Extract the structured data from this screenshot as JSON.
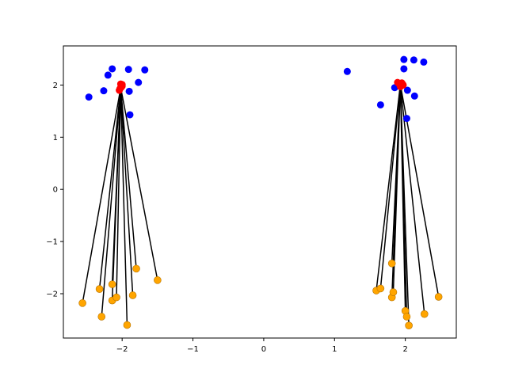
{
  "chart_data": {
    "type": "scatter",
    "title": "",
    "xlabel": "",
    "ylabel": "",
    "xlim": [
      -2.83,
      2.72
    ],
    "ylim": [
      -2.85,
      2.75
    ],
    "grid": false,
    "x_ticks": [
      -2,
      -1,
      0,
      1,
      2
    ],
    "x_tick_labels": [
      "−2",
      "−1",
      "0",
      "1",
      "2"
    ],
    "y_ticks": [
      -2,
      -1,
      0,
      1,
      2
    ],
    "y_tick_labels": [
      "−2",
      "−1",
      "0",
      "1",
      "2"
    ],
    "colors": {
      "blue": "#0000ff",
      "red": "#ff0000",
      "orange": "#ffa500",
      "line": "#000000",
      "orange_edge": "#b87400"
    },
    "series": [
      {
        "color": "blue",
        "points": [
          [
            -2.47,
            1.77
          ],
          [
            -2.26,
            1.89
          ],
          [
            -2.2,
            2.19
          ],
          [
            -2.14,
            2.31
          ],
          [
            -1.91,
            2.3
          ],
          [
            -1.9,
            1.88
          ],
          [
            -1.89,
            1.43
          ],
          [
            -1.77,
            2.05
          ],
          [
            -1.68,
            2.29
          ],
          [
            1.18,
            2.26
          ],
          [
            1.65,
            1.62
          ],
          [
            1.85,
            1.95
          ],
          [
            1.98,
            2.49
          ],
          [
            1.98,
            2.31
          ],
          [
            2.03,
            1.9
          ],
          [
            2.02,
            1.36
          ],
          [
            2.13,
            1.79
          ],
          [
            2.12,
            2.48
          ],
          [
            2.26,
            2.44
          ]
        ]
      },
      {
        "color": "red",
        "points": [
          [
            -2.04,
            1.9
          ],
          [
            -2.02,
            1.95
          ],
          [
            -2.01,
            1.99
          ],
          [
            -2.02,
            2.02
          ],
          [
            -2.0,
            2.01
          ],
          [
            -2.03,
            1.93
          ],
          [
            -2.01,
            1.96
          ],
          [
            -2.0,
            1.98
          ],
          [
            1.89,
            2.05
          ],
          [
            1.92,
            2.01
          ],
          [
            1.96,
            2.02
          ],
          [
            1.94,
            1.98
          ],
          [
            1.91,
            2.03
          ],
          [
            1.97,
            2.0
          ],
          [
            1.93,
            1.97
          ],
          [
            1.95,
            2.04
          ]
        ]
      },
      {
        "color": "orange",
        "points": [
          [
            -2.56,
            -2.18
          ],
          [
            -2.32,
            -1.91
          ],
          [
            -2.29,
            -2.44
          ],
          [
            -2.14,
            -1.82
          ],
          [
            -2.14,
            -2.13
          ],
          [
            -2.08,
            -2.07
          ],
          [
            -1.93,
            -2.6
          ],
          [
            -1.85,
            -2.03
          ],
          [
            -1.8,
            -1.52
          ],
          [
            -1.5,
            -1.74
          ],
          [
            1.59,
            -1.94
          ],
          [
            1.65,
            -1.9
          ],
          [
            1.81,
            -1.42
          ],
          [
            1.81,
            -2.07
          ],
          [
            1.83,
            -1.97
          ],
          [
            2.0,
            -2.33
          ],
          [
            2.02,
            -2.44
          ],
          [
            2.05,
            -2.61
          ],
          [
            2.27,
            -2.39
          ],
          [
            2.47,
            -2.06
          ]
        ]
      }
    ],
    "lines": [
      {
        "from": [
          -2.02,
          1.95
        ],
        "to": [
          -2.56,
          -2.18
        ]
      },
      {
        "from": [
          -2.02,
          1.95
        ],
        "to": [
          -2.32,
          -1.91
        ]
      },
      {
        "from": [
          -2.02,
          1.95
        ],
        "to": [
          -2.29,
          -2.44
        ]
      },
      {
        "from": [
          -2.02,
          1.95
        ],
        "to": [
          -2.14,
          -1.82
        ]
      },
      {
        "from": [
          -2.02,
          1.95
        ],
        "to": [
          -2.14,
          -2.13
        ]
      },
      {
        "from": [
          -2.02,
          1.95
        ],
        "to": [
          -2.08,
          -2.07
        ]
      },
      {
        "from": [
          -2.02,
          1.95
        ],
        "to": [
          -1.93,
          -2.6
        ]
      },
      {
        "from": [
          -2.02,
          1.95
        ],
        "to": [
          -1.85,
          -2.03
        ]
      },
      {
        "from": [
          -2.02,
          1.95
        ],
        "to": [
          -1.8,
          -1.52
        ]
      },
      {
        "from": [
          -2.02,
          1.95
        ],
        "to": [
          -1.5,
          -1.74
        ]
      },
      {
        "from": [
          1.93,
          2.01
        ],
        "to": [
          1.59,
          -1.94
        ]
      },
      {
        "from": [
          1.93,
          2.01
        ],
        "to": [
          1.65,
          -1.9
        ]
      },
      {
        "from": [
          1.93,
          2.01
        ],
        "to": [
          1.81,
          -1.42
        ]
      },
      {
        "from": [
          1.93,
          2.01
        ],
        "to": [
          1.81,
          -2.07
        ]
      },
      {
        "from": [
          1.93,
          2.01
        ],
        "to": [
          1.83,
          -1.97
        ]
      },
      {
        "from": [
          1.93,
          2.01
        ],
        "to": [
          2.0,
          -2.33
        ]
      },
      {
        "from": [
          1.93,
          2.01
        ],
        "to": [
          2.02,
          -2.44
        ]
      },
      {
        "from": [
          1.93,
          2.01
        ],
        "to": [
          2.05,
          -2.61
        ]
      },
      {
        "from": [
          1.93,
          2.01
        ],
        "to": [
          2.27,
          -2.39
        ]
      },
      {
        "from": [
          1.93,
          2.01
        ],
        "to": [
          2.47,
          -2.06
        ]
      }
    ]
  }
}
